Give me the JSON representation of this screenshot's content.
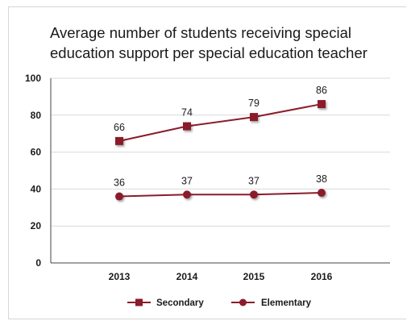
{
  "chart_data": {
    "type": "line",
    "title": "Average number of students receiving special education support per special education teacher",
    "categories": [
      "2013",
      "2014",
      "2015",
      "2016"
    ],
    "ylim": [
      0,
      100
    ],
    "yticks": [
      0,
      20,
      40,
      60,
      80,
      100
    ],
    "grid": true,
    "legend_position": "bottom",
    "series": [
      {
        "name": "Secondary",
        "values": [
          66,
          74,
          79,
          86
        ],
        "marker": "square",
        "color": "#8a1c2c"
      },
      {
        "name": "Elementary",
        "values": [
          36,
          37,
          37,
          38
        ],
        "marker": "circle",
        "color": "#8a1c2c"
      }
    ]
  }
}
